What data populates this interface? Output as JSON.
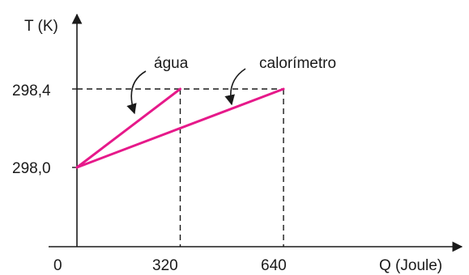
{
  "chart_data": {
    "type": "line",
    "ylabel": "T (K)",
    "xlabel": "Q (Joule)",
    "x_ticks": [
      "0",
      "320",
      "640"
    ],
    "y_ticks": [
      "298,0",
      "298,4"
    ],
    "xlim": [
      0,
      700
    ],
    "ylim": [
      297.8,
      298.5
    ],
    "series": [
      {
        "name": "água",
        "x": [
          0,
          320
        ],
        "y": [
          298.0,
          298.4
        ]
      },
      {
        "name": "calorímetro",
        "x": [
          0,
          640
        ],
        "y": [
          298.0,
          298.4
        ]
      }
    ],
    "colors": {
      "series": "#e6198a",
      "axis": "#1a1a1a"
    }
  }
}
